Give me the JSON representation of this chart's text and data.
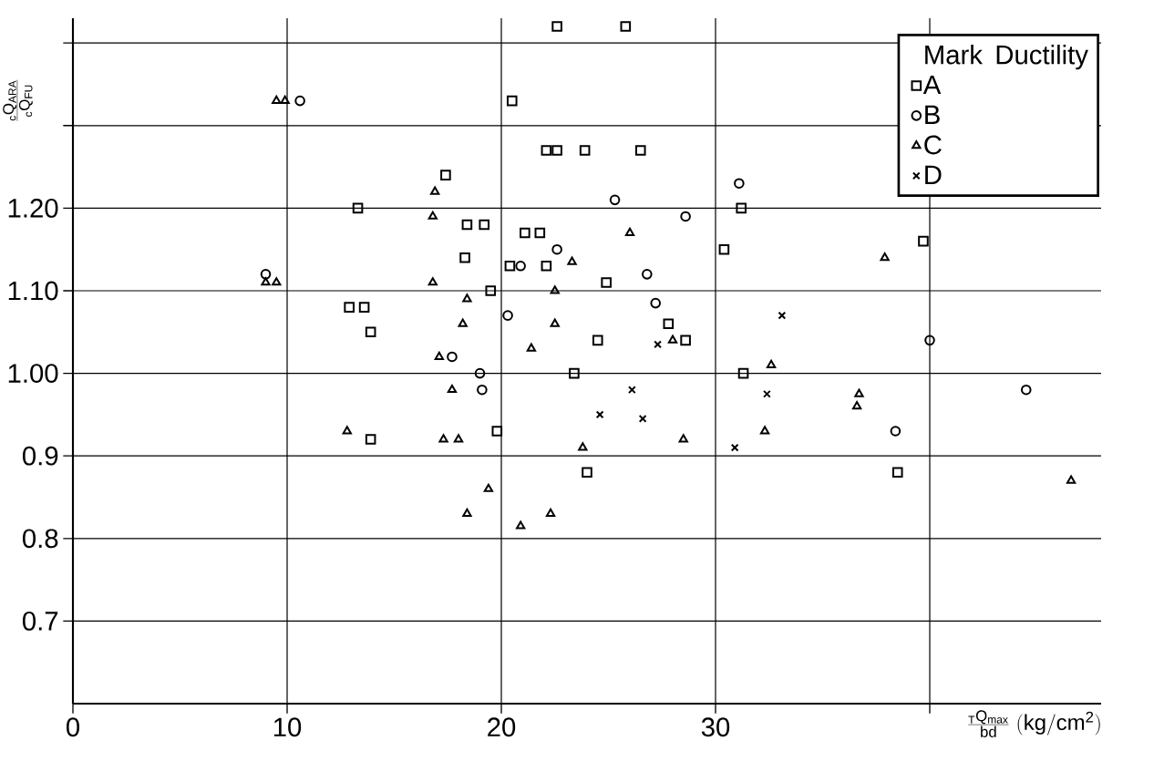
{
  "chart_data": {
    "type": "scatter",
    "xlabel": "\\frac{{}_{\\mathrm{T}}\\mathrm{Q}_{\\mathrm{max}}}{\\mathrm{bd}}\\;(\\mathrm{kg/cm^{2}})",
    "ylabel": "\\frac{{}_{\\mathrm{c}}\\mathrm{Q}_{\\mathrm{ARA}}}{{}_{\\mathrm{c}}\\mathrm{Q}_{\\mathrm{FU}}}",
    "xlim": [
      0,
      48
    ],
    "ylim": [
      0.6,
      1.43
    ],
    "xticks": [
      0,
      10,
      20,
      30,
      {
        "value": 40,
        "label": null
      }
    ],
    "yticks": [
      {
        "value": 0.7,
        "label": "0.7"
      },
      {
        "value": 0.8,
        "label": "0.8"
      },
      {
        "value": 0.9,
        "label": "0.9"
      },
      {
        "value": 1.0,
        "label": "1.00"
      },
      {
        "value": 1.1,
        "label": "1.10"
      },
      {
        "value": 1.2,
        "label": "1.20"
      },
      {
        "value": 1.3,
        "label": null
      },
      {
        "value": 1.4,
        "label": null
      }
    ],
    "grid": true,
    "legend": "top right",
    "legend_title": "Ductility",
    "annotations": [
      "Mark"
    ],
    "series": [
      {
        "name": "A",
        "color": "#000000",
        "marker": "square",
        "x": [
          22.6,
          25.8,
          20.5,
          22.1,
          22.6,
          23.9,
          26.5,
          17.4,
          13.3,
          18.4,
          19.2,
          21.1,
          21.8,
          18.3,
          20.4,
          22.1,
          19.5,
          24.9,
          12.9,
          13.6,
          13.9,
          27.8,
          24.5,
          28.6,
          31.2,
          30.4,
          39.7,
          23.4,
          31.3,
          13.9,
          19.8,
          24.0,
          38.5
        ],
        "values": [
          1.42,
          1.42,
          1.33,
          1.27,
          1.27,
          1.27,
          1.27,
          1.24,
          1.2,
          1.18,
          1.18,
          1.17,
          1.17,
          1.14,
          1.13,
          1.13,
          1.1,
          1.11,
          1.08,
          1.08,
          1.05,
          1.06,
          1.04,
          1.04,
          1.2,
          1.15,
          1.16,
          1.0,
          1.0,
          0.92,
          0.93,
          0.88,
          0.88
        ]
      },
      {
        "name": "B",
        "color": "#000000",
        "marker": "circle",
        "x": [
          10.6,
          9.0,
          22.6,
          20.9,
          20.3,
          17.7,
          19.0,
          19.1,
          25.3,
          31.1,
          28.6,
          26.8,
          27.2,
          40.0,
          44.5,
          38.4
        ],
        "values": [
          1.33,
          1.12,
          1.15,
          1.13,
          1.07,
          1.02,
          1.0,
          0.98,
          1.21,
          1.23,
          1.19,
          1.12,
          1.085,
          1.04,
          0.98,
          0.93
        ]
      },
      {
        "name": "C",
        "color": "#000000",
        "marker": "triangle",
        "x": [
          9.5,
          9.9,
          9.0,
          9.5,
          16.9,
          16.8,
          16.8,
          18.4,
          18.2,
          17.1,
          23.3,
          22.5,
          22.5,
          21.4,
          26.0,
          37.9,
          28.0,
          32.6,
          17.7,
          12.8,
          17.3,
          18.0,
          19.4,
          18.4,
          20.9,
          22.3,
          23.8,
          28.5,
          32.3,
          36.7,
          36.6,
          46.6
        ],
        "values": [
          1.33,
          1.33,
          1.11,
          1.11,
          1.22,
          1.19,
          1.11,
          1.09,
          1.06,
          1.02,
          1.135,
          1.1,
          1.06,
          1.03,
          1.17,
          1.14,
          1.04,
          1.01,
          0.98,
          0.93,
          0.92,
          0.92,
          0.86,
          0.83,
          0.815,
          0.83,
          0.91,
          0.92,
          0.93,
          0.975,
          0.96,
          0.87
        ]
      },
      {
        "name": "D",
        "color": "#000000",
        "marker": "cross",
        "x": [
          33.1,
          27.3,
          26.1,
          24.6,
          26.6,
          32.4,
          30.9
        ],
        "values": [
          1.07,
          1.035,
          0.98,
          0.95,
          0.945,
          0.975,
          0.91
        ]
      }
    ]
  }
}
